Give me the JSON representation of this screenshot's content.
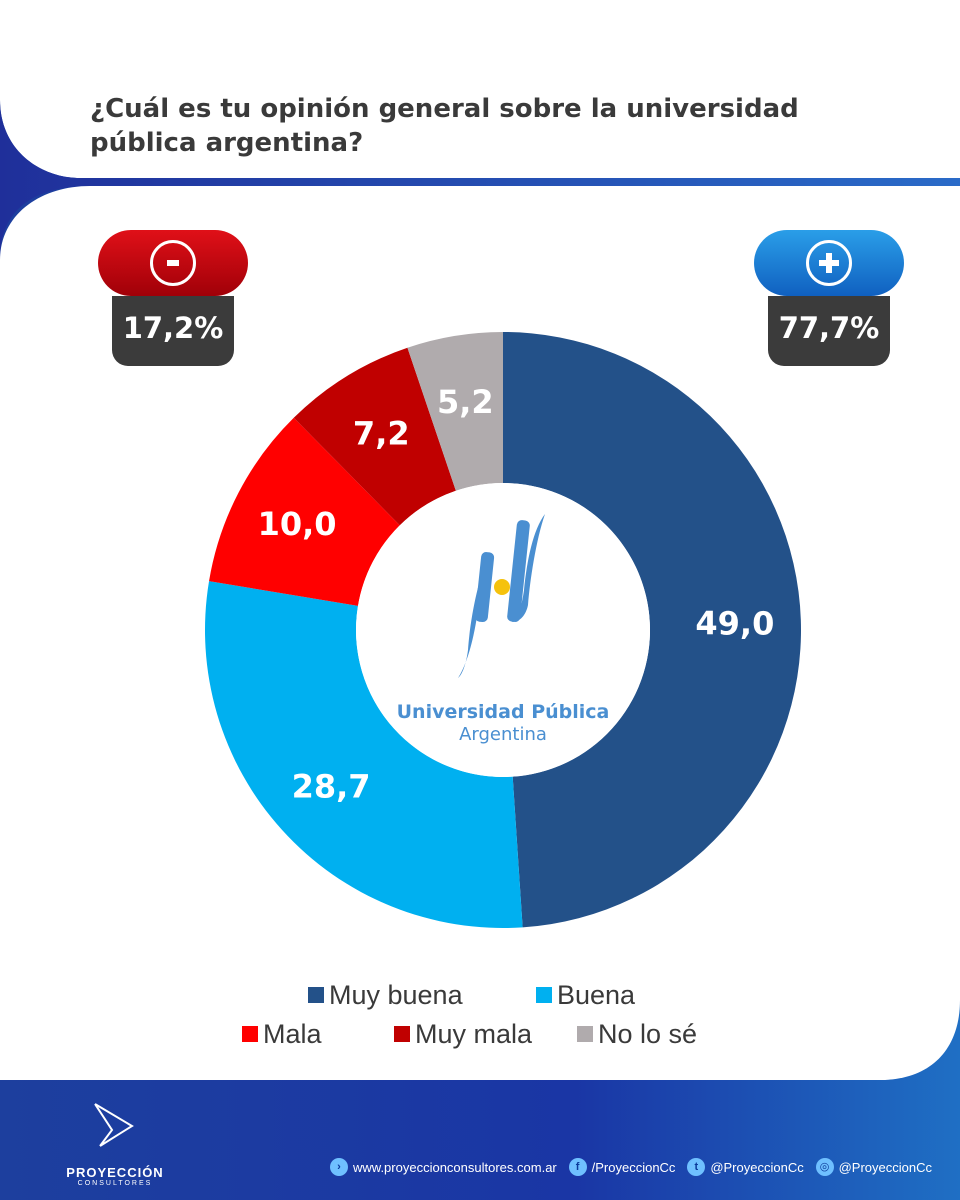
{
  "title": "¿Cuál es tu opinión general sobre la universidad pública argentina?",
  "badges": {
    "negative": {
      "symbol": "minus-icon",
      "value": "17,2%",
      "color": "#d9000f"
    },
    "positive": {
      "symbol": "plus-icon",
      "value": "77,7%",
      "color": "#1f8fe0"
    }
  },
  "center_logo": {
    "line1": "Universidad Pública",
    "line2": "Argentina",
    "color": "#4a8fd1",
    "sun_color": "#f5c20d"
  },
  "chart_data": {
    "type": "pie",
    "variant": "donut",
    "categories": [
      "Muy buena",
      "Buena",
      "Mala",
      "Muy mala",
      "No lo sé"
    ],
    "values": [
      49.0,
      28.7,
      10.0,
      7.2,
      5.2
    ],
    "labels": [
      "49,0",
      "28,7",
      "10,0",
      "7,2",
      "5,2"
    ],
    "colors": [
      "#235189",
      "#00b0f0",
      "#ff0000",
      "#c00000",
      "#b0abad"
    ],
    "legend": [
      "Muy buena",
      "Buena",
      "Mala",
      "Muy mala",
      "No lo sé"
    ],
    "legend_placement": "bottom"
  },
  "footer": {
    "brand": "PROYECCIÓN",
    "brand_sub": "CONSULTORES",
    "website": "www.proyeccionconsultores.com.ar",
    "facebook": "/ProyeccionCc",
    "twitter": "@ProyeccionCc",
    "instagram": "@ProyeccionCc"
  }
}
